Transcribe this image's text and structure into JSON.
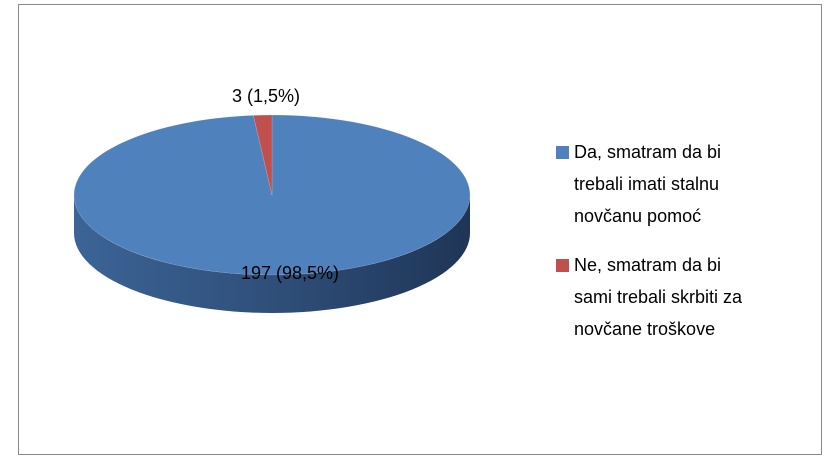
{
  "chart_data": {
    "type": "pie",
    "series": [
      {
        "name": "Da, smatram da bi trebali imati stalnu novčanu pomoć",
        "color": "#4f81bd"
      },
      {
        "name": "Ne, smatram da bi sami trebali skrbiti za novčane troškove",
        "color": "#c0504d"
      }
    ],
    "values": [
      197,
      3
    ],
    "value_labels": [
      "197 (98,5%)",
      "3 (1,5%)"
    ]
  }
}
